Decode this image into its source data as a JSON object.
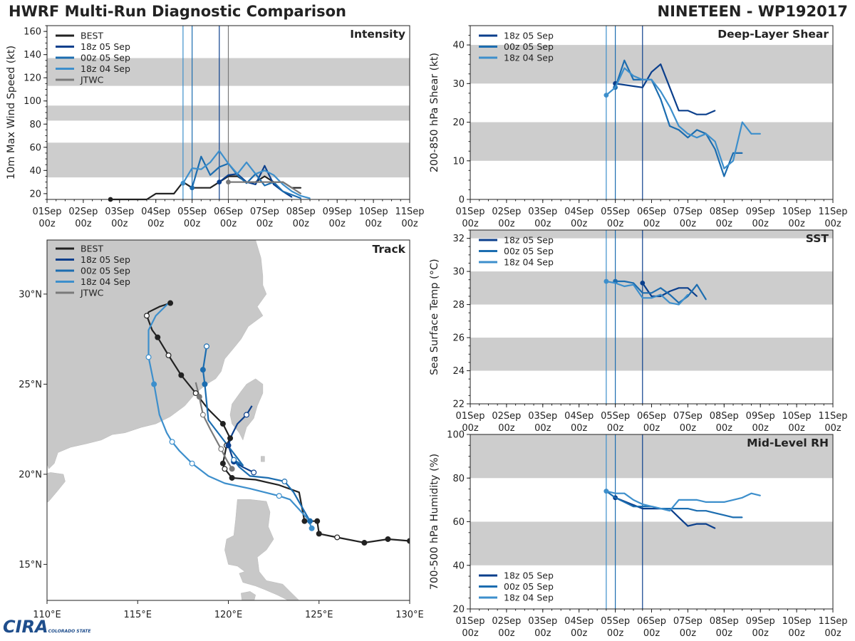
{
  "header": {
    "title_left": "HWRF Multi-Run Diagnostic Comparison",
    "title_right": "NINETEEN - WP192017"
  },
  "logo": {
    "text": "CIRA",
    "sub": "COLORADO STATE"
  },
  "colors": {
    "best": "#222222",
    "r18z05": "#0b3f8c",
    "r00z05": "#1c6db0",
    "r18z04": "#3d8fcc",
    "jtwc": "#7a7a7a",
    "band": "#cdcdcd",
    "land": "#c8c8c8"
  },
  "time_axis": {
    "ticks": [
      "01Sep",
      "02Sep",
      "03Sep",
      "04Sep",
      "05Sep",
      "06Sep",
      "07Sep",
      "08Sep",
      "09Sep",
      "10Sep",
      "11Sep"
    ],
    "sub": "00z"
  },
  "chart_data": [
    {
      "id": "intensity",
      "type": "line",
      "title": "Intensity",
      "ylabel": "10m Max Wind Speed (kt)",
      "xlim": [
        0,
        10
      ],
      "ylim": [
        15,
        165
      ],
      "yticks": [
        20,
        40,
        60,
        80,
        100,
        120,
        140,
        160
      ],
      "bands": [
        [
          34,
          64
        ],
        [
          83,
          96
        ],
        [
          113,
          137
        ]
      ],
      "vlines": [
        {
          "t": 3.75,
          "series": "r18z04"
        },
        {
          "t": 4.0,
          "series": "r00z05"
        },
        {
          "t": 4.75,
          "series": "r18z05"
        },
        {
          "t": 5.0,
          "series": "jtwc"
        }
      ],
      "legend": [
        "BEST",
        "18z 05 Sep",
        "00z 05 Sep",
        "18z 04 Sep",
        "JTWC"
      ],
      "series": [
        {
          "key": "best",
          "name": "BEST",
          "x": [
            1.75,
            2.0,
            2.25,
            2.5,
            2.75,
            3.0,
            3.25,
            3.5,
            3.75,
            4.0,
            4.25,
            4.5,
            4.75,
            5.0,
            5.25,
            5.5,
            5.75,
            6.0,
            6.25,
            6.5,
            6.75,
            7.0
          ],
          "y": [
            15,
            15,
            15,
            15,
            15,
            20,
            20,
            20,
            30,
            25,
            25,
            25,
            30,
            35,
            35,
            30,
            30,
            35,
            30,
            30,
            25,
            25
          ]
        },
        {
          "key": "r18z05",
          "name": "18z 05 Sep",
          "x": [
            4.75,
            5.0,
            5.25,
            5.5,
            5.75,
            6.0,
            6.25,
            6.5,
            6.75
          ],
          "y": [
            30,
            36,
            37,
            30,
            28,
            44,
            28,
            22,
            17
          ]
        },
        {
          "key": "r00z05",
          "name": "00z 05 Sep",
          "x": [
            4.0,
            4.25,
            4.5,
            4.75,
            5.0,
            5.25,
            5.5,
            5.75,
            6.0,
            6.25,
            6.5,
            6.75,
            7.0
          ],
          "y": [
            25,
            52,
            36,
            43,
            46,
            36,
            29,
            37,
            27,
            30,
            22,
            19,
            16
          ]
        },
        {
          "key": "r18z04",
          "name": "18z 04 Sep",
          "x": [
            3.75,
            4.0,
            4.25,
            4.5,
            4.75,
            5.0,
            5.25,
            5.5,
            5.75,
            6.0,
            6.25,
            6.5,
            6.75,
            7.0,
            7.25
          ],
          "y": [
            29,
            42,
            41,
            47,
            57,
            46,
            37,
            47,
            37,
            40,
            36,
            28,
            22,
            18,
            16
          ]
        },
        {
          "key": "jtwc",
          "name": "JTWC",
          "x": [
            5.0,
            5.25,
            5.5,
            5.75,
            6.0,
            6.25,
            6.5,
            6.75,
            7.0
          ],
          "y": [
            30,
            30,
            30,
            30,
            30,
            30,
            30,
            25,
            20
          ]
        }
      ]
    },
    {
      "id": "shear",
      "type": "line",
      "title": "Deep-Layer Shear",
      "ylabel": "200-850 hPa Shear (kt)",
      "xlim": [
        0,
        10
      ],
      "ylim": [
        0,
        45
      ],
      "yticks": [
        0,
        10,
        20,
        30,
        40
      ],
      "bands": [
        [
          10,
          20
        ],
        [
          30,
          40
        ]
      ],
      "vlines": [
        {
          "t": 3.75,
          "series": "r18z04"
        },
        {
          "t": 4.0,
          "series": "r00z05"
        },
        {
          "t": 4.75,
          "series": "r18z05"
        }
      ],
      "legend": [
        "18z 05 Sep",
        "00z 05 Sep",
        "18z 04 Sep"
      ],
      "series": [
        {
          "key": "r18z05",
          "name": "18z 05 Sep",
          "x": [
            4.0,
            4.75,
            5.0,
            5.25,
            5.5,
            5.75,
            6.0,
            6.25,
            6.5,
            6.75
          ],
          "y": [
            30,
            29,
            33,
            35,
            29,
            23,
            23,
            22,
            22,
            23
          ]
        },
        {
          "key": "r00z05",
          "name": "00z 05 Sep",
          "x": [
            4.0,
            4.25,
            4.5,
            4.75,
            5.0,
            5.25,
            5.5,
            5.75,
            6.0,
            6.25,
            6.5,
            6.75,
            7.0,
            7.25,
            7.5
          ],
          "y": [
            29,
            36,
            31,
            31,
            31,
            26,
            19,
            18,
            16,
            18,
            17,
            13,
            6,
            12,
            12
          ]
        },
        {
          "key": "r18z04",
          "name": "18z 04 Sep",
          "x": [
            3.75,
            4.0,
            4.25,
            4.5,
            4.75,
            5.0,
            5.25,
            5.5,
            5.75,
            6.0,
            6.25,
            6.5,
            6.75,
            7.0,
            7.25,
            7.5,
            7.75,
            8.0
          ],
          "y": [
            27,
            29,
            34,
            32,
            31,
            31,
            28,
            24,
            19,
            17,
            16,
            17,
            15,
            8,
            10,
            20,
            17,
            17
          ]
        }
      ]
    },
    {
      "id": "sst",
      "type": "line",
      "title": "SST",
      "ylabel": "Sea Surface Temp (°C)",
      "xlim": [
        0,
        10
      ],
      "ylim": [
        22,
        32.5
      ],
      "yticks": [
        22,
        24,
        26,
        28,
        30,
        32
      ],
      "bands": [
        [
          24,
          26
        ],
        [
          28,
          30
        ],
        [
          32,
          34
        ]
      ],
      "vlines": [
        {
          "t": 3.75,
          "series": "r18z04"
        },
        {
          "t": 4.0,
          "series": "r00z05"
        },
        {
          "t": 4.75,
          "series": "r18z05"
        }
      ],
      "legend": [
        "18z 05 Sep",
        "00z 05 Sep",
        "18z 04 Sep"
      ],
      "series": [
        {
          "key": "r18z05",
          "name": "18z 05 Sep",
          "x": [
            4.75,
            5.0,
            5.25,
            5.5,
            5.75,
            6.0,
            6.25
          ],
          "y": [
            29.3,
            28.5,
            28.5,
            28.8,
            29.0,
            29.0,
            28.5
          ]
        },
        {
          "key": "r00z05",
          "name": "00z 05 Sep",
          "x": [
            4.0,
            4.25,
            4.5,
            4.75,
            5.0,
            5.25,
            5.5,
            5.75,
            6.0,
            6.25,
            6.5
          ],
          "y": [
            29.4,
            29.4,
            29.3,
            28.7,
            28.7,
            29.0,
            28.6,
            28.1,
            28.5,
            29.2,
            28.3
          ]
        },
        {
          "key": "r18z04",
          "name": "18z 04 Sep",
          "x": [
            3.75,
            4.0,
            4.25,
            4.5,
            4.75,
            5.0,
            5.25,
            5.5,
            5.75,
            6.0
          ],
          "y": [
            29.4,
            29.3,
            29.1,
            29.2,
            28.4,
            28.4,
            28.6,
            28.1,
            28.0,
            28.6
          ]
        }
      ]
    },
    {
      "id": "rh",
      "type": "line",
      "title": "Mid-Level RH",
      "ylabel": "700-500 hPa Humidity (%)",
      "xlim": [
        0,
        10
      ],
      "ylim": [
        20,
        100
      ],
      "yticks": [
        20,
        40,
        60,
        80,
        100
      ],
      "bands": [
        [
          40,
          60
        ],
        [
          80,
          100
        ]
      ],
      "vlines": [
        {
          "t": 3.75,
          "series": "r18z04"
        },
        {
          "t": 4.0,
          "series": "r00z05"
        },
        {
          "t": 4.75,
          "series": "r18z05"
        }
      ],
      "legend": [
        "18z 05 Sep",
        "00z 05 Sep",
        "18z 04 Sep"
      ],
      "series": [
        {
          "key": "r18z05",
          "name": "18z 05 Sep",
          "x": [
            4.0,
            4.75,
            5.0,
            5.25,
            5.5,
            5.75,
            6.0,
            6.25,
            6.5,
            6.75
          ],
          "y": [
            71,
            66,
            66,
            66,
            66,
            62,
            58,
            59,
            59,
            57
          ]
        },
        {
          "key": "r00z05",
          "name": "00z 05 Sep",
          "x": [
            3.75,
            4.0,
            4.25,
            4.5,
            4.75,
            5.0,
            5.25,
            5.5,
            5.75,
            6.0,
            6.25,
            6.5,
            6.75,
            7.0,
            7.25,
            7.5
          ],
          "y": [
            74,
            71,
            69,
            67,
            67,
            67,
            66,
            66,
            66,
            66,
            65,
            65,
            64,
            63,
            62,
            62
          ]
        },
        {
          "key": "r18z04",
          "name": "18z 04 Sep",
          "x": [
            3.75,
            4.0,
            4.25,
            4.5,
            4.75,
            5.0,
            5.25,
            5.5,
            5.75,
            6.0,
            6.25,
            6.5,
            6.75,
            7.0,
            7.25,
            7.5,
            7.75,
            8.0
          ],
          "y": [
            74,
            73,
            73,
            70,
            68,
            67,
            66,
            65,
            70,
            70,
            70,
            69,
            69,
            69,
            70,
            71,
            73,
            72
          ]
        }
      ]
    },
    {
      "id": "track",
      "type": "scatter",
      "title": "Track",
      "xlim": [
        110,
        130
      ],
      "ylim": [
        13,
        33
      ],
      "xticks": [
        {
          "v": 110,
          "label": "110°E"
        },
        {
          "v": 115,
          "label": "115°E"
        },
        {
          "v": 120,
          "label": "120°E"
        },
        {
          "v": 125,
          "label": "125°E"
        },
        {
          "v": 130,
          "label": "130°E"
        }
      ],
      "yticks": [
        {
          "v": 15,
          "label": "15°N"
        },
        {
          "v": 20,
          "label": "20°N"
        },
        {
          "v": 25,
          "label": "25°N"
        },
        {
          "v": 30,
          "label": "30°N"
        }
      ],
      "legend": [
        "BEST",
        "18z 05 Sep",
        "00z 05 Sep",
        "18z 04 Sep",
        "JTWC"
      ],
      "series": [
        {
          "key": "best",
          "name": "BEST",
          "lon": [
            130.0,
            128.8,
            127.5,
            126.0,
            125.0,
            124.9,
            124.2,
            123.9,
            122.8,
            121.5,
            120.2,
            119.8,
            119.7,
            119.9,
            120.1,
            119.7,
            118.9,
            118.2,
            117.4,
            116.7,
            116.1,
            115.8,
            115.5,
            115.6,
            116.2,
            116.8
          ],
          "lat": [
            16.3,
            16.4,
            16.2,
            16.5,
            16.7,
            17.4,
            17.4,
            19.0,
            19.4,
            19.7,
            19.8,
            20.3,
            20.6,
            21.6,
            22.0,
            22.8,
            23.6,
            24.5,
            25.5,
            26.6,
            27.6,
            28.0,
            28.8,
            29.0,
            29.3,
            29.5
          ],
          "dots": [
            0,
            1,
            2,
            3,
            4,
            5,
            6,
            10,
            11,
            12,
            13,
            14,
            15,
            17,
            18,
            19,
            20,
            22,
            25
          ],
          "hollow": [
            3,
            11,
            13,
            17,
            19,
            22
          ]
        },
        {
          "key": "r18z05",
          "name": "18z 05 Sep",
          "lon": [
            121.4,
            120.8,
            120.3,
            120.0,
            120.2,
            120.5,
            121.0,
            121.3
          ],
          "lat": [
            20.1,
            20.4,
            20.7,
            21.6,
            22.2,
            22.8,
            23.3,
            23.8
          ],
          "dots": [
            0,
            2,
            3,
            6
          ],
          "hollow": [
            0,
            6
          ]
        },
        {
          "key": "r00z05",
          "name": "00z 05 Sep",
          "lon": [
            124.5,
            123.6,
            123.1,
            122.2,
            121.2,
            120.6,
            120.3,
            120.8,
            118.9,
            118.7,
            118.6,
            118.8
          ],
          "lat": [
            17.4,
            19.0,
            19.6,
            19.8,
            19.9,
            20.4,
            20.8,
            20.5,
            23.0,
            25.0,
            25.8,
            27.1
          ],
          "dots": [
            0,
            2,
            6,
            9,
            10,
            11
          ],
          "hollow": [
            2,
            6,
            11
          ]
        },
        {
          "key": "r18z04",
          "name": "18z 04 Sep",
          "lon": [
            124.6,
            124.4,
            123.4,
            122.8,
            121.2,
            119.8,
            118.9,
            118.0,
            117.3,
            116.9,
            116.6,
            116.2,
            115.9,
            115.6,
            115.6,
            116.0,
            116.7
          ],
          "lat": [
            17.0,
            17.5,
            18.6,
            18.8,
            19.2,
            19.5,
            19.9,
            20.6,
            21.3,
            21.8,
            22.3,
            23.3,
            25.0,
            26.5,
            28.0,
            28.8,
            29.5
          ],
          "dots": [
            0,
            3,
            7,
            9,
            12,
            13
          ],
          "hollow": [
            3,
            7,
            9,
            13
          ]
        },
        {
          "key": "jtwc",
          "name": "JTWC",
          "lon": [
            120.2,
            119.9,
            119.6,
            119.0,
            118.6,
            118.4,
            118.2
          ],
          "lat": [
            20.3,
            20.8,
            21.4,
            22.5,
            23.3,
            24.3,
            25.1
          ],
          "dots": [
            0,
            2,
            4,
            5
          ],
          "hollow": [
            2,
            4
          ]
        }
      ]
    }
  ]
}
